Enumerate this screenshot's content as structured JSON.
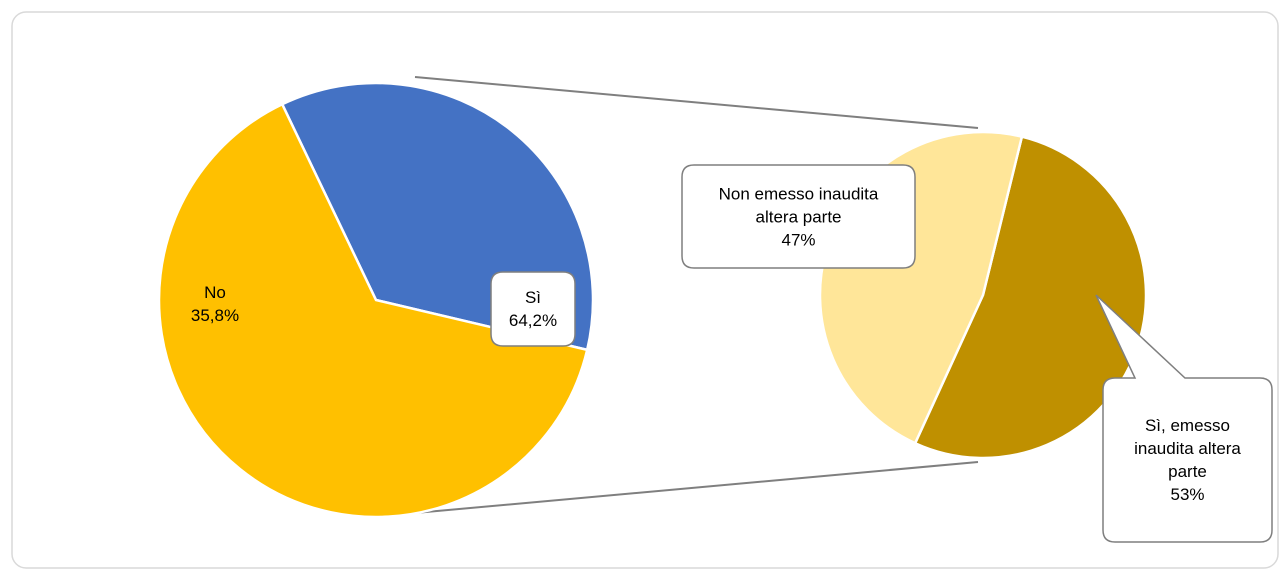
{
  "chart_data": [
    {
      "type": "pie",
      "categories": [
        "No",
        "Sì"
      ],
      "values": [
        35.8,
        64.2
      ],
      "value_labels": [
        "35,8%",
        "64,2%"
      ],
      "colors": [
        "#4472c4",
        "#ffc000"
      ]
    },
    {
      "type": "pie",
      "categories": [
        "Sì, emesso inaudita altera parte",
        "Non emesso inaudita altera parte"
      ],
      "values": [
        53,
        47
      ],
      "value_labels": [
        "53%",
        "47%"
      ],
      "colors": [
        "#bf9000",
        "#ffe699"
      ]
    }
  ]
}
